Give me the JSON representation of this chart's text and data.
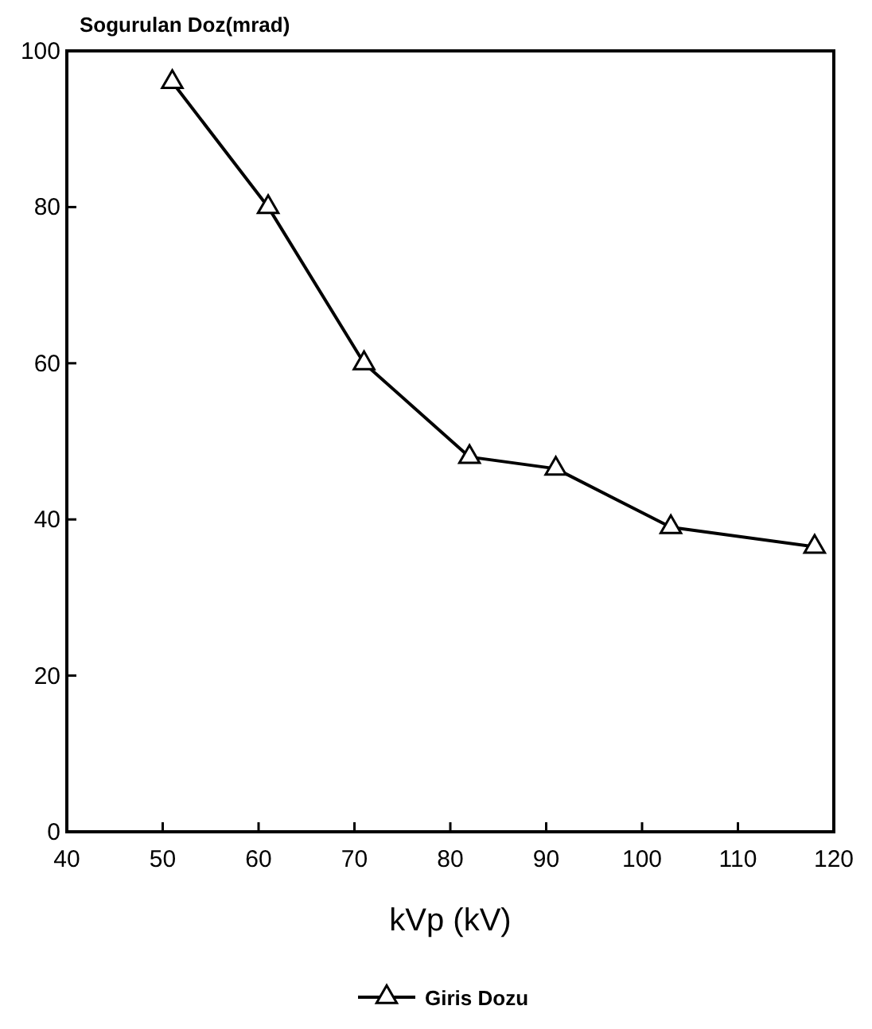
{
  "chart_data": {
    "type": "line",
    "ylabel": "Sogurulan Doz(mrad)",
    "xlabel": "kVp (kV)",
    "x": [
      51,
      61,
      71,
      82,
      91,
      103,
      118
    ],
    "series": [
      {
        "name": "Giris Dozu",
        "color": "#000000",
        "values": [
          96,
          80,
          60,
          48,
          46.5,
          39,
          36.5
        ]
      }
    ],
    "xlim": [
      40,
      120
    ],
    "xticks": [
      40,
      50,
      60,
      70,
      80,
      90,
      100,
      110,
      120
    ],
    "ylim": [
      0,
      100
    ],
    "yticks": [
      0,
      20,
      40,
      60,
      80,
      100
    ],
    "marker": "triangle",
    "line_style": "solid",
    "legend": "bottom",
    "grid": false
  }
}
